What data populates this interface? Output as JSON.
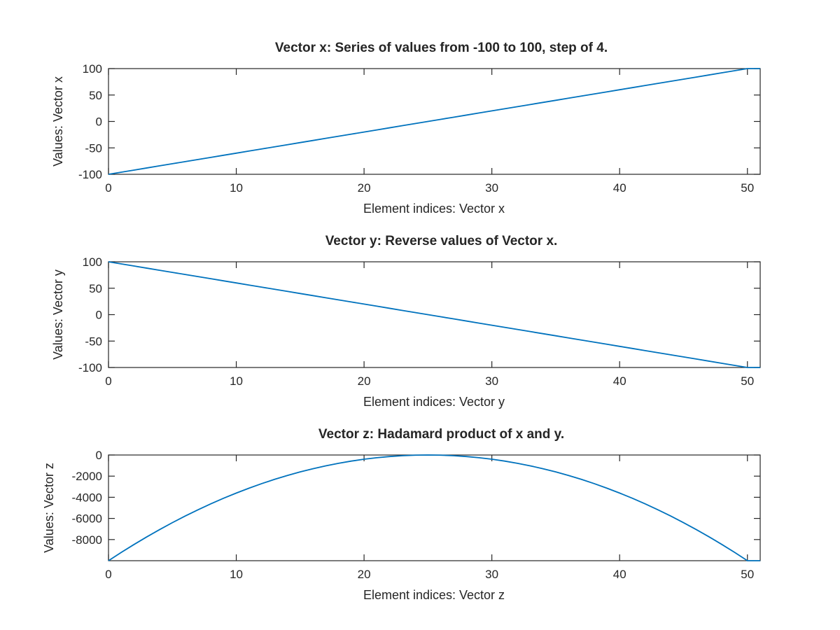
{
  "chart_data": [
    {
      "type": "line",
      "title": "Vector x: Series of values from -100 to 100, step of 4.",
      "xlabel": "Element indices: Vector x",
      "ylabel": "Values: Vector x",
      "xlim": [
        0,
        51
      ],
      "ylim": [
        -100,
        100
      ],
      "xticks": [
        0,
        10,
        20,
        30,
        40,
        50
      ],
      "yticks": [
        -100,
        -50,
        0,
        50,
        100
      ],
      "grid": false,
      "series": [
        {
          "color": "#0072bd",
          "x": [
            0,
            1,
            2,
            3,
            4,
            5,
            6,
            7,
            8,
            9,
            10,
            11,
            12,
            13,
            14,
            15,
            16,
            17,
            18,
            19,
            20,
            21,
            22,
            23,
            24,
            25,
            26,
            27,
            28,
            29,
            30,
            31,
            32,
            33,
            34,
            35,
            36,
            37,
            38,
            39,
            40,
            41,
            42,
            43,
            44,
            45,
            46,
            47,
            48,
            49,
            50,
            51
          ],
          "y": [
            -100,
            -96,
            -92,
            -88,
            -84,
            -80,
            -76,
            -72,
            -68,
            -64,
            -60,
            -56,
            -52,
            -48,
            -44,
            -40,
            -36,
            -32,
            -28,
            -24,
            -20,
            -16,
            -12,
            -8,
            -4,
            0,
            4,
            8,
            12,
            16,
            20,
            24,
            28,
            32,
            36,
            40,
            44,
            48,
            52,
            56,
            60,
            64,
            68,
            72,
            76,
            80,
            84,
            88,
            92,
            96,
            100,
            100
          ]
        }
      ]
    },
    {
      "type": "line",
      "title": "Vector y: Reverse values of Vector x.",
      "xlabel": "Element indices: Vector y",
      "ylabel": "Values: Vector y",
      "xlim": [
        0,
        51
      ],
      "ylim": [
        -100,
        100
      ],
      "xticks": [
        0,
        10,
        20,
        30,
        40,
        50
      ],
      "yticks": [
        -100,
        -50,
        0,
        50,
        100
      ],
      "grid": false,
      "series": [
        {
          "color": "#0072bd",
          "x": [
            0,
            1,
            2,
            3,
            4,
            5,
            6,
            7,
            8,
            9,
            10,
            11,
            12,
            13,
            14,
            15,
            16,
            17,
            18,
            19,
            20,
            21,
            22,
            23,
            24,
            25,
            26,
            27,
            28,
            29,
            30,
            31,
            32,
            33,
            34,
            35,
            36,
            37,
            38,
            39,
            40,
            41,
            42,
            43,
            44,
            45,
            46,
            47,
            48,
            49,
            50,
            51
          ],
          "y": [
            100,
            96,
            92,
            88,
            84,
            80,
            76,
            72,
            68,
            64,
            60,
            56,
            52,
            48,
            44,
            40,
            36,
            32,
            28,
            24,
            20,
            16,
            12,
            8,
            4,
            0,
            -4,
            -8,
            -12,
            -16,
            -20,
            -24,
            -28,
            -32,
            -36,
            -40,
            -44,
            -48,
            -52,
            -56,
            -60,
            -64,
            -68,
            -72,
            -76,
            -80,
            -84,
            -88,
            -92,
            -96,
            -100,
            -100
          ]
        }
      ]
    },
    {
      "type": "line",
      "title": "Vector z: Hadamard product of x and y.",
      "xlabel": "Element indices: Vector z",
      "ylabel": "Values: Vector z",
      "xlim": [
        0,
        51
      ],
      "ylim": [
        -10000,
        0
      ],
      "xticks": [
        0,
        10,
        20,
        30,
        40,
        50
      ],
      "yticks": [
        -8000,
        -6000,
        -4000,
        -2000,
        0
      ],
      "grid": false,
      "series": [
        {
          "color": "#0072bd",
          "x": [
            0,
            1,
            2,
            3,
            4,
            5,
            6,
            7,
            8,
            9,
            10,
            11,
            12,
            13,
            14,
            15,
            16,
            17,
            18,
            19,
            20,
            21,
            22,
            23,
            24,
            25,
            26,
            27,
            28,
            29,
            30,
            31,
            32,
            33,
            34,
            35,
            36,
            37,
            38,
            39,
            40,
            41,
            42,
            43,
            44,
            45,
            46,
            47,
            48,
            49,
            50,
            51
          ],
          "y": [
            -10000,
            -9216,
            -8464,
            -7744,
            -7056,
            -6400,
            -5776,
            -5184,
            -4624,
            -4096,
            -3600,
            -3136,
            -2704,
            -2304,
            -1936,
            -1600,
            -1296,
            -1024,
            -784,
            -576,
            -400,
            -256,
            -144,
            -64,
            -16,
            0,
            -16,
            -64,
            -144,
            -256,
            -400,
            -576,
            -784,
            -1024,
            -1296,
            -1600,
            -1936,
            -2304,
            -2704,
            -3136,
            -3600,
            -4096,
            -4624,
            -5184,
            -5776,
            -6400,
            -7056,
            -7744,
            -8464,
            -9216,
            -10000,
            -10000
          ]
        }
      ]
    }
  ]
}
